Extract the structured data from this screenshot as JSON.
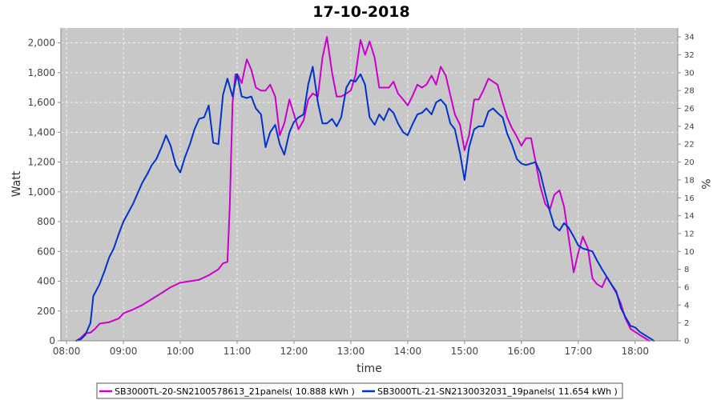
{
  "chart_data": {
    "type": "line",
    "title": "17-10-2018",
    "xlabel": "time",
    "ylabel": "Watt",
    "y2label": "%",
    "xlim": [
      8.0,
      8.975
    ],
    "ylim": [
      0,
      2100
    ],
    "y2lim": [
      0,
      35
    ],
    "x_ticks": [
      "08:00",
      "09:00",
      "10:00",
      "11:00",
      "12:00",
      "13:00",
      "14:00",
      "15:00",
      "16:00",
      "17:00",
      "18:00"
    ],
    "y_ticks": [
      "0",
      "200",
      "400",
      "600",
      "800",
      "1,000",
      "1,200",
      "1,400",
      "1,600",
      "1,800",
      "2,000"
    ],
    "y2_ticks": [
      "0",
      "2",
      "4",
      "6",
      "8",
      "10",
      "12",
      "14",
      "16",
      "18",
      "20",
      "22",
      "24",
      "26",
      "28",
      "30",
      "32",
      "34"
    ],
    "grid": true,
    "legend_position": "bottom",
    "series": [
      {
        "name": "SB3000TL-20-SN2100578613_21panels( 10.888 kWh )",
        "color": "#cc00cc",
        "points": [
          [
            8.17,
            0
          ],
          [
            8.25,
            20
          ],
          [
            8.33,
            50
          ],
          [
            8.42,
            55
          ],
          [
            8.5,
            80
          ],
          [
            8.58,
            115
          ],
          [
            8.75,
            125
          ],
          [
            8.92,
            150
          ],
          [
            9.0,
            185
          ],
          [
            9.17,
            210
          ],
          [
            9.33,
            240
          ],
          [
            9.5,
            280
          ],
          [
            9.67,
            320
          ],
          [
            9.83,
            360
          ],
          [
            10.0,
            390
          ],
          [
            10.17,
            400
          ],
          [
            10.33,
            410
          ],
          [
            10.5,
            440
          ],
          [
            10.67,
            480
          ],
          [
            10.75,
            520
          ],
          [
            10.83,
            530
          ],
          [
            10.87,
            900
          ],
          [
            10.92,
            1600
          ],
          [
            10.97,
            1790
          ],
          [
            11.02,
            1780
          ],
          [
            11.08,
            1730
          ],
          [
            11.17,
            1890
          ],
          [
            11.25,
            1820
          ],
          [
            11.33,
            1700
          ],
          [
            11.42,
            1680
          ],
          [
            11.5,
            1680
          ],
          [
            11.58,
            1720
          ],
          [
            11.67,
            1640
          ],
          [
            11.75,
            1380
          ],
          [
            11.83,
            1460
          ],
          [
            11.92,
            1620
          ],
          [
            12.0,
            1520
          ],
          [
            12.08,
            1420
          ],
          [
            12.17,
            1480
          ],
          [
            12.25,
            1620
          ],
          [
            12.33,
            1660
          ],
          [
            12.42,
            1640
          ],
          [
            12.5,
            1900
          ],
          [
            12.58,
            2040
          ],
          [
            12.67,
            1800
          ],
          [
            12.75,
            1640
          ],
          [
            12.83,
            1640
          ],
          [
            12.92,
            1660
          ],
          [
            13.0,
            1680
          ],
          [
            13.08,
            1780
          ],
          [
            13.17,
            2020
          ],
          [
            13.25,
            1920
          ],
          [
            13.33,
            2010
          ],
          [
            13.42,
            1900
          ],
          [
            13.5,
            1700
          ],
          [
            13.58,
            1700
          ],
          [
            13.67,
            1700
          ],
          [
            13.75,
            1740
          ],
          [
            13.83,
            1660
          ],
          [
            13.92,
            1620
          ],
          [
            14.0,
            1580
          ],
          [
            14.08,
            1640
          ],
          [
            14.17,
            1720
          ],
          [
            14.25,
            1700
          ],
          [
            14.33,
            1720
          ],
          [
            14.42,
            1780
          ],
          [
            14.5,
            1720
          ],
          [
            14.58,
            1840
          ],
          [
            14.67,
            1780
          ],
          [
            14.75,
            1650
          ],
          [
            14.83,
            1520
          ],
          [
            14.92,
            1450
          ],
          [
            15.0,
            1280
          ],
          [
            15.08,
            1380
          ],
          [
            15.17,
            1620
          ],
          [
            15.25,
            1620
          ],
          [
            15.33,
            1680
          ],
          [
            15.42,
            1760
          ],
          [
            15.5,
            1740
          ],
          [
            15.58,
            1720
          ],
          [
            15.67,
            1600
          ],
          [
            15.75,
            1500
          ],
          [
            15.83,
            1430
          ],
          [
            15.92,
            1370
          ],
          [
            16.0,
            1310
          ],
          [
            16.08,
            1360
          ],
          [
            16.17,
            1360
          ],
          [
            16.25,
            1200
          ],
          [
            16.33,
            1040
          ],
          [
            16.42,
            920
          ],
          [
            16.5,
            880
          ],
          [
            16.58,
            980
          ],
          [
            16.67,
            1010
          ],
          [
            16.75,
            900
          ],
          [
            16.83,
            700
          ],
          [
            16.92,
            460
          ],
          [
            17.0,
            590
          ],
          [
            17.08,
            700
          ],
          [
            17.17,
            620
          ],
          [
            17.25,
            420
          ],
          [
            17.33,
            380
          ],
          [
            17.42,
            360
          ],
          [
            17.5,
            430
          ],
          [
            17.58,
            380
          ],
          [
            17.67,
            320
          ],
          [
            17.75,
            250
          ],
          [
            17.83,
            150
          ],
          [
            17.92,
            80
          ],
          [
            18.0,
            60
          ],
          [
            18.08,
            40
          ],
          [
            18.25,
            0
          ]
        ]
      },
      {
        "name": "SB3000TL-21-SN2130032031_19panels( 11.654 kWh )",
        "color": "#0033cc",
        "points": [
          [
            8.17,
            0
          ],
          [
            8.25,
            10
          ],
          [
            8.33,
            40
          ],
          [
            8.42,
            120
          ],
          [
            8.47,
            300
          ],
          [
            8.58,
            380
          ],
          [
            8.67,
            470
          ],
          [
            8.75,
            560
          ],
          [
            8.83,
            620
          ],
          [
            8.92,
            720
          ],
          [
            9.0,
            800
          ],
          [
            9.17,
            920
          ],
          [
            9.33,
            1060
          ],
          [
            9.42,
            1120
          ],
          [
            9.5,
            1180
          ],
          [
            9.58,
            1220
          ],
          [
            9.67,
            1300
          ],
          [
            9.75,
            1380
          ],
          [
            9.83,
            1310
          ],
          [
            9.92,
            1180
          ],
          [
            10.0,
            1130
          ],
          [
            10.08,
            1230
          ],
          [
            10.17,
            1320
          ],
          [
            10.25,
            1420
          ],
          [
            10.33,
            1490
          ],
          [
            10.42,
            1500
          ],
          [
            10.5,
            1580
          ],
          [
            10.58,
            1330
          ],
          [
            10.67,
            1320
          ],
          [
            10.75,
            1650
          ],
          [
            10.83,
            1760
          ],
          [
            10.92,
            1640
          ],
          [
            11.0,
            1790
          ],
          [
            11.08,
            1640
          ],
          [
            11.17,
            1630
          ],
          [
            11.25,
            1640
          ],
          [
            11.33,
            1560
          ],
          [
            11.42,
            1520
          ],
          [
            11.5,
            1300
          ],
          [
            11.58,
            1400
          ],
          [
            11.67,
            1450
          ],
          [
            11.75,
            1320
          ],
          [
            11.83,
            1250
          ],
          [
            11.92,
            1400
          ],
          [
            12.0,
            1470
          ],
          [
            12.08,
            1500
          ],
          [
            12.17,
            1520
          ],
          [
            12.25,
            1720
          ],
          [
            12.33,
            1840
          ],
          [
            12.42,
            1600
          ],
          [
            12.5,
            1460
          ],
          [
            12.58,
            1460
          ],
          [
            12.67,
            1490
          ],
          [
            12.75,
            1440
          ],
          [
            12.83,
            1500
          ],
          [
            12.92,
            1700
          ],
          [
            13.0,
            1750
          ],
          [
            13.08,
            1740
          ],
          [
            13.17,
            1790
          ],
          [
            13.25,
            1720
          ],
          [
            13.33,
            1500
          ],
          [
            13.42,
            1450
          ],
          [
            13.5,
            1520
          ],
          [
            13.58,
            1480
          ],
          [
            13.67,
            1560
          ],
          [
            13.75,
            1530
          ],
          [
            13.83,
            1460
          ],
          [
            13.92,
            1400
          ],
          [
            14.0,
            1380
          ],
          [
            14.08,
            1450
          ],
          [
            14.17,
            1520
          ],
          [
            14.25,
            1530
          ],
          [
            14.33,
            1560
          ],
          [
            14.42,
            1520
          ],
          [
            14.5,
            1600
          ],
          [
            14.58,
            1620
          ],
          [
            14.67,
            1580
          ],
          [
            14.75,
            1460
          ],
          [
            14.83,
            1420
          ],
          [
            14.92,
            1260
          ],
          [
            15.0,
            1080
          ],
          [
            15.08,
            1300
          ],
          [
            15.17,
            1420
          ],
          [
            15.25,
            1440
          ],
          [
            15.33,
            1440
          ],
          [
            15.42,
            1540
          ],
          [
            15.5,
            1560
          ],
          [
            15.58,
            1530
          ],
          [
            15.67,
            1500
          ],
          [
            15.75,
            1390
          ],
          [
            15.83,
            1320
          ],
          [
            15.92,
            1220
          ],
          [
            16.0,
            1190
          ],
          [
            16.08,
            1180
          ],
          [
            16.17,
            1190
          ],
          [
            16.25,
            1200
          ],
          [
            16.33,
            1130
          ],
          [
            16.42,
            990
          ],
          [
            16.5,
            870
          ],
          [
            16.58,
            770
          ],
          [
            16.67,
            740
          ],
          [
            16.75,
            790
          ],
          [
            16.83,
            760
          ],
          [
            16.92,
            700
          ],
          [
            17.0,
            640
          ],
          [
            17.08,
            620
          ],
          [
            17.17,
            610
          ],
          [
            17.25,
            600
          ],
          [
            17.33,
            540
          ],
          [
            17.42,
            480
          ],
          [
            17.5,
            430
          ],
          [
            17.58,
            380
          ],
          [
            17.67,
            330
          ],
          [
            17.75,
            220
          ],
          [
            17.83,
            160
          ],
          [
            17.92,
            100
          ],
          [
            18.0,
            90
          ],
          [
            18.08,
            60
          ],
          [
            18.25,
            20
          ],
          [
            18.33,
            0
          ]
        ]
      }
    ]
  }
}
